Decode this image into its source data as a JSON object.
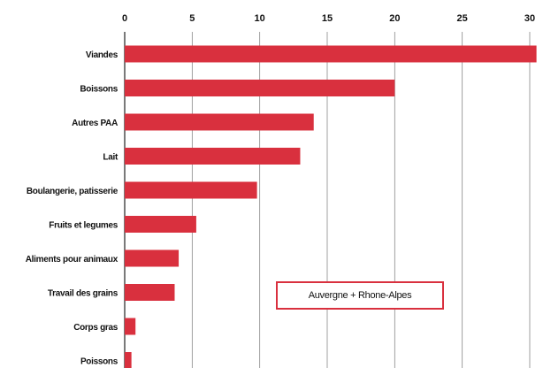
{
  "chart_data": {
    "type": "bar",
    "orientation": "horizontal",
    "categories": [
      "Viandes",
      "Boissons",
      "Autres PAA",
      "Lait",
      "Boulangerie, patisserie",
      "Fruits et legumes",
      "Aliments pour animaux",
      "Travail des grains",
      "Corps gras",
      "Poissons"
    ],
    "values": [
      30.5,
      20.0,
      14.0,
      13.0,
      9.8,
      5.3,
      4.0,
      3.7,
      0.8,
      0.5
    ],
    "xlim": [
      0,
      30
    ],
    "xticks": [
      "0",
      "5",
      "10",
      "15",
      "20",
      "25",
      "30"
    ],
    "grid": true,
    "axis_position": "top",
    "bar_color": "#d9303e",
    "legend": {
      "label": "Auvergne + Rhone-Alpes",
      "placement": "bottom-right"
    }
  }
}
